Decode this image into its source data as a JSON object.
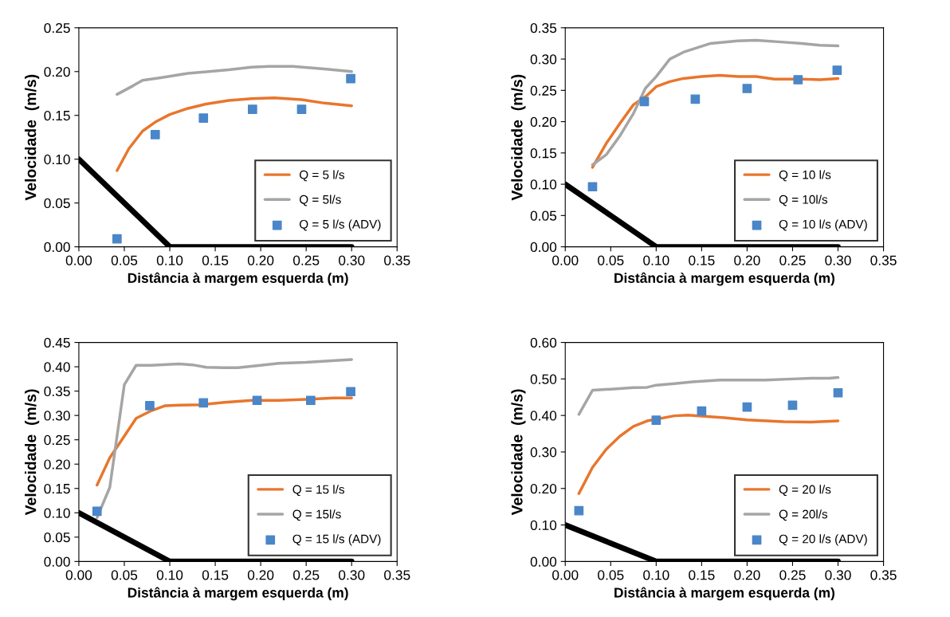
{
  "chart_data": [
    {
      "type": "line",
      "xlabel": "Distância à margem esquerda (m)",
      "ylabel": "Velocidade  (m/s)",
      "legend": "bottom right",
      "grid": false,
      "xlim": [
        0,
        0.35
      ],
      "xticks": [
        {
          "value": 0,
          "label": "0.00"
        },
        {
          "value": 0.05,
          "label": "0.05"
        },
        {
          "value": 0.1,
          "label": "0.10"
        },
        {
          "value": 0.15,
          "label": "0.15"
        },
        {
          "value": 0.2,
          "label": "0.20"
        },
        {
          "value": 0.25,
          "label": "0.25"
        },
        {
          "value": 0.3,
          "label": "0.30"
        },
        {
          "value": 0.35,
          "label": "0.35"
        }
      ],
      "ylim": [
        0,
        0.25
      ],
      "yticks": [
        {
          "value": 0,
          "label": "0.00"
        },
        {
          "value": 0.05,
          "label": "0.05"
        },
        {
          "value": 0.1,
          "label": "0.10"
        },
        {
          "value": 0.15,
          "label": "0.15"
        },
        {
          "value": 0.2,
          "label": "0.20"
        },
        {
          "value": 0.25,
          "label": "0.25"
        }
      ],
      "series": [
        {
          "name": "Q = 5 l/s",
          "color": "#e8762d",
          "marker": "none",
          "x": [
            0.042,
            0.055,
            0.07,
            0.085,
            0.1,
            0.12,
            0.14,
            0.165,
            0.19,
            0.215,
            0.245,
            0.27,
            0.3
          ],
          "values": [
            0.087,
            0.112,
            0.132,
            0.143,
            0.151,
            0.158,
            0.163,
            0.167,
            0.169,
            0.17,
            0.168,
            0.164,
            0.161
          ]
        },
        {
          "name": "Q = 5l/s",
          "color": "#a5a5a5",
          "marker": "none",
          "x": [
            0.042,
            0.06,
            0.07,
            0.09,
            0.12,
            0.165,
            0.19,
            0.21,
            0.235,
            0.27,
            0.3
          ],
          "values": [
            0.174,
            0.184,
            0.19,
            0.193,
            0.198,
            0.202,
            0.205,
            0.206,
            0.206,
            0.203,
            0.2
          ]
        },
        {
          "name": "Q = 5 l/s (ADV)",
          "color": "#4a86c8",
          "type": "scatter",
          "marker": "square",
          "x": [
            0.042,
            0.084,
            0.137,
            0.191,
            0.245,
            0.299
          ],
          "values": [
            0.009,
            0.128,
            0.147,
            0.157,
            0.157,
            0.192
          ]
        },
        {
          "color": "#000000",
          "marker": "none",
          "x": [
            0,
            0.1,
            0.3
          ],
          "values": [
            0.1,
            0,
            0
          ]
        }
      ]
    },
    {
      "type": "line",
      "xlabel": "Distância à margem esquerda (m)",
      "ylabel": "Velocidade  (m/s)",
      "legend": "bottom right",
      "grid": false,
      "xlim": [
        0,
        0.35
      ],
      "xticks": [
        {
          "value": 0,
          "label": "0.00"
        },
        {
          "value": 0.05,
          "label": "0.05"
        },
        {
          "value": 0.1,
          "label": "0.10"
        },
        {
          "value": 0.15,
          "label": "0.15"
        },
        {
          "value": 0.2,
          "label": "0.20"
        },
        {
          "value": 0.25,
          "label": "0.25"
        },
        {
          "value": 0.3,
          "label": "0.30"
        },
        {
          "value": 0.35,
          "label": "0.35"
        }
      ],
      "ylim": [
        0,
        0.35
      ],
      "yticks": [
        {
          "value": 0,
          "label": "0.00"
        },
        {
          "value": 0.05,
          "label": "0.05"
        },
        {
          "value": 0.1,
          "label": "0.10"
        },
        {
          "value": 0.15,
          "label": "0.15"
        },
        {
          "value": 0.2,
          "label": "0.20"
        },
        {
          "value": 0.25,
          "label": "0.25"
        },
        {
          "value": 0.3,
          "label": "0.30"
        },
        {
          "value": 0.35,
          "label": "0.35"
        }
      ],
      "series": [
        {
          "name": "Q = 10 l/s",
          "color": "#e8762d",
          "marker": "none",
          "x": [
            0.03,
            0.045,
            0.06,
            0.075,
            0.09,
            0.1,
            0.115,
            0.13,
            0.15,
            0.17,
            0.19,
            0.21,
            0.23,
            0.26,
            0.28,
            0.3
          ],
          "values": [
            0.127,
            0.165,
            0.197,
            0.227,
            0.242,
            0.256,
            0.264,
            0.269,
            0.272,
            0.274,
            0.272,
            0.272,
            0.268,
            0.268,
            0.267,
            0.269
          ]
        },
        {
          "name": "Q = 10l/s",
          "color": "#a5a5a5",
          "marker": "none",
          "x": [
            0.03,
            0.045,
            0.06,
            0.075,
            0.088,
            0.1,
            0.115,
            0.13,
            0.16,
            0.19,
            0.21,
            0.24,
            0.26,
            0.28,
            0.3
          ],
          "values": [
            0.131,
            0.147,
            0.177,
            0.213,
            0.253,
            0.272,
            0.3,
            0.311,
            0.325,
            0.329,
            0.33,
            0.327,
            0.325,
            0.322,
            0.321
          ]
        },
        {
          "name": "Q = 10 l/s (ADV)",
          "color": "#4a86c8",
          "type": "scatter",
          "marker": "square",
          "x": [
            0.03,
            0.087,
            0.143,
            0.2,
            0.256,
            0.299
          ],
          "values": [
            0.096,
            0.232,
            0.236,
            0.253,
            0.267,
            0.282
          ]
        },
        {
          "color": "#000000",
          "marker": "none",
          "x": [
            0,
            0.1,
            0.3
          ],
          "values": [
            0.1,
            0,
            0
          ]
        }
      ]
    },
    {
      "type": "line",
      "xlabel": "Distância à margem esquerda (m)",
      "ylabel": "Velocidade  (m/s)",
      "legend": "bottom right",
      "grid": false,
      "xlim": [
        0,
        0.35
      ],
      "xticks": [
        {
          "value": 0,
          "label": "0.00"
        },
        {
          "value": 0.05,
          "label": "0.05"
        },
        {
          "value": 0.1,
          "label": "0.10"
        },
        {
          "value": 0.15,
          "label": "0.15"
        },
        {
          "value": 0.2,
          "label": "0.20"
        },
        {
          "value": 0.25,
          "label": "0.25"
        },
        {
          "value": 0.3,
          "label": "0.30"
        },
        {
          "value": 0.35,
          "label": "0.35"
        }
      ],
      "ylim": [
        0,
        0.45
      ],
      "yticks": [
        {
          "value": 0,
          "label": "0.00"
        },
        {
          "value": 0.05,
          "label": "0.05"
        },
        {
          "value": 0.1,
          "label": "0.10"
        },
        {
          "value": 0.15,
          "label": "0.15"
        },
        {
          "value": 0.2,
          "label": "0.20"
        },
        {
          "value": 0.25,
          "label": "0.25"
        },
        {
          "value": 0.3,
          "label": "0.30"
        },
        {
          "value": 0.35,
          "label": "0.35"
        },
        {
          "value": 0.4,
          "label": "0.40"
        },
        {
          "value": 0.45,
          "label": "0.45"
        }
      ],
      "series": [
        {
          "name": "Q = 15 l/s",
          "color": "#e8762d",
          "marker": "none",
          "x": [
            0.02,
            0.034,
            0.048,
            0.063,
            0.08,
            0.095,
            0.11,
            0.135,
            0.16,
            0.19,
            0.22,
            0.25,
            0.28,
            0.3
          ],
          "values": [
            0.157,
            0.213,
            0.252,
            0.294,
            0.31,
            0.32,
            0.321,
            0.322,
            0.327,
            0.331,
            0.331,
            0.333,
            0.336,
            0.336
          ]
        },
        {
          "name": "Q = 15l/s",
          "color": "#a5a5a5",
          "marker": "none",
          "x": [
            0.02,
            0.034,
            0.05,
            0.063,
            0.08,
            0.11,
            0.125,
            0.14,
            0.16,
            0.175,
            0.2,
            0.22,
            0.25,
            0.3
          ],
          "values": [
            0.09,
            0.152,
            0.363,
            0.403,
            0.403,
            0.406,
            0.404,
            0.399,
            0.398,
            0.398,
            0.403,
            0.407,
            0.409,
            0.415
          ]
        },
        {
          "name": "Q = 15 l/s (ADV)",
          "color": "#4a86c8",
          "type": "scatter",
          "marker": "square",
          "x": [
            0.02,
            0.078,
            0.137,
            0.196,
            0.255,
            0.299
          ],
          "values": [
            0.103,
            0.32,
            0.326,
            0.331,
            0.331,
            0.349
          ]
        },
        {
          "color": "#000000",
          "marker": "none",
          "x": [
            0,
            0.1,
            0.3
          ],
          "values": [
            0.1,
            0,
            0
          ]
        }
      ]
    },
    {
      "type": "line",
      "xlabel": "Distância à margem esquerda (m)",
      "ylabel": "Velocidade  (m/s)",
      "legend": "bottom right",
      "grid": false,
      "xlim": [
        0,
        0.35
      ],
      "xticks": [
        {
          "value": 0,
          "label": "0.00"
        },
        {
          "value": 0.05,
          "label": "0.05"
        },
        {
          "value": 0.1,
          "label": "0.10"
        },
        {
          "value": 0.15,
          "label": "0.15"
        },
        {
          "value": 0.2,
          "label": "0.20"
        },
        {
          "value": 0.25,
          "label": "0.25"
        },
        {
          "value": 0.3,
          "label": "0.30"
        },
        {
          "value": 0.35,
          "label": "0.35"
        }
      ],
      "ylim": [
        0,
        0.6
      ],
      "yticks": [
        {
          "value": 0,
          "label": "0.00"
        },
        {
          "value": 0.1,
          "label": "0.10"
        },
        {
          "value": 0.2,
          "label": "0.20"
        },
        {
          "value": 0.3,
          "label": "0.30"
        },
        {
          "value": 0.4,
          "label": "0.40"
        },
        {
          "value": 0.5,
          "label": "0.50"
        },
        {
          "value": 0.6,
          "label": "0.60"
        }
      ],
      "series": [
        {
          "name": "Q = 20 l/s",
          "color": "#e8762d",
          "marker": "none",
          "x": [
            0.015,
            0.03,
            0.045,
            0.06,
            0.075,
            0.09,
            0.12,
            0.135,
            0.15,
            0.175,
            0.2,
            0.24,
            0.27,
            0.3
          ],
          "values": [
            0.186,
            0.258,
            0.307,
            0.343,
            0.37,
            0.385,
            0.399,
            0.401,
            0.398,
            0.394,
            0.388,
            0.383,
            0.382,
            0.385
          ]
        },
        {
          "name": "Q = 20l/s",
          "color": "#a5a5a5",
          "marker": "none",
          "x": [
            0.015,
            0.03,
            0.05,
            0.075,
            0.09,
            0.1,
            0.12,
            0.14,
            0.17,
            0.2,
            0.22,
            0.25,
            0.27,
            0.29,
            0.3
          ],
          "values": [
            0.403,
            0.469,
            0.472,
            0.476,
            0.477,
            0.483,
            0.487,
            0.492,
            0.497,
            0.497,
            0.497,
            0.5,
            0.502,
            0.502,
            0.504
          ]
        },
        {
          "name": "Q = 20 l/s (ADV)",
          "color": "#4a86c8",
          "type": "scatter",
          "marker": "square",
          "x": [
            0.015,
            0.1,
            0.15,
            0.2,
            0.25,
            0.3
          ],
          "values": [
            0.139,
            0.387,
            0.412,
            0.423,
            0.428,
            0.462
          ]
        },
        {
          "color": "#000000",
          "marker": "none",
          "x": [
            0,
            0.1,
            0.3
          ],
          "values": [
            0.1,
            0,
            0
          ]
        }
      ]
    }
  ]
}
